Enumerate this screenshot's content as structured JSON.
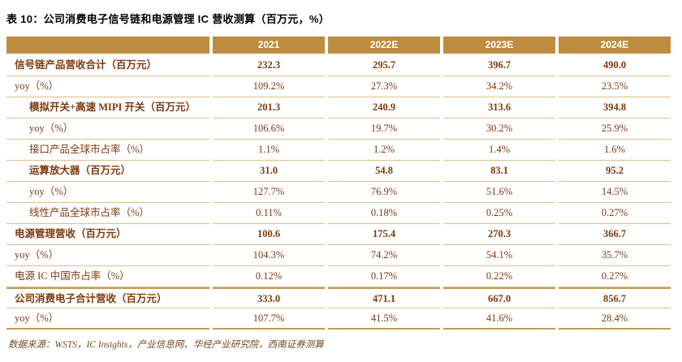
{
  "chart_data": {
    "type": "table",
    "title": "表 10：公司消费电子信号链和电源管理 IC 营收测算（百万元，%）",
    "columns": [
      "2021",
      "2022E",
      "2023E",
      "2024E"
    ],
    "rows": [
      {
        "label": "信号链产品营收合计（百万元）",
        "values": [
          "232.3",
          "295.7",
          "396.7",
          "490.0"
        ],
        "bold": true,
        "indent": false
      },
      {
        "label": "yoy（%）",
        "values": [
          "109.2%",
          "27.3%",
          "34.2%",
          "23.5%"
        ],
        "bold": false,
        "indent": false
      },
      {
        "label": "模拟开关+高速 MIPI 开关（百万元）",
        "values": [
          "201.3",
          "240.9",
          "313.6",
          "394.8"
        ],
        "bold": true,
        "indent": true
      },
      {
        "label": "yoy（%）",
        "values": [
          "106.6%",
          "19.7%",
          "30.2%",
          "25.9%"
        ],
        "bold": false,
        "indent": true
      },
      {
        "label": "接口产品全球市占率（%）",
        "values": [
          "1.1%",
          "1.2%",
          "1.4%",
          "1.6%"
        ],
        "bold": false,
        "indent": true
      },
      {
        "label": "运算放大器（百万元）",
        "values": [
          "31.0",
          "54.8",
          "83.1",
          "95.2"
        ],
        "bold": true,
        "indent": true
      },
      {
        "label": "yoy（%）",
        "values": [
          "127.7%",
          "76.9%",
          "51.6%",
          "14.5%"
        ],
        "bold": false,
        "indent": true
      },
      {
        "label": "线性产品全球市占率（%）",
        "values": [
          "0.11%",
          "0.18%",
          "0.25%",
          "0.27%"
        ],
        "bold": false,
        "indent": true
      },
      {
        "label": "电源管理营收（百万元）",
        "values": [
          "100.6",
          "175.4",
          "270.3",
          "366.7"
        ],
        "bold": true,
        "indent": false
      },
      {
        "label": "yoy（%）",
        "values": [
          "104.3%",
          "74.2%",
          "54.1%",
          "35.7%"
        ],
        "bold": false,
        "indent": false
      },
      {
        "label": "电源 IC 中国市占率（%）",
        "values": [
          "0.12%",
          "0.17%",
          "0.22%",
          "0.27%"
        ],
        "bold": false,
        "indent": false
      },
      {
        "label": "公司消费电子合计营收（百万元）",
        "values": [
          "333.0",
          "471.1",
          "667.0",
          "856.7"
        ],
        "bold": true,
        "indent": false,
        "rule_above": true
      },
      {
        "label": "yoy（%）",
        "values": [
          "107.7%",
          "41.5%",
          "41.6%",
          "28.4%"
        ],
        "bold": false,
        "indent": false
      }
    ],
    "source": "数据来源：WSTS，IC Insights，产业信息网、华经产业研究院，西南证券测算"
  },
  "colors": {
    "header_bg": "#BE8C3F",
    "row_line": "#DCC08A",
    "heavy_line": "#C49B55",
    "text": "#7D3A10"
  }
}
